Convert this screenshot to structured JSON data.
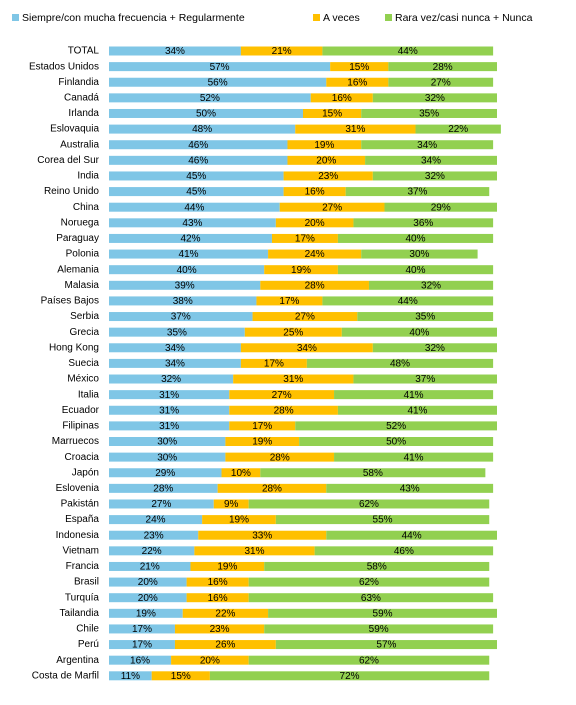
{
  "chart_data": {
    "type": "stacked-bar-horizontal",
    "categories": [
      "TOTAL",
      "Estados Unidos",
      "Finlandia",
      "Canadá",
      "Irlanda",
      "Eslovaquia",
      "Australia",
      "Corea del Sur",
      "India",
      "Reino Unido",
      "China",
      "Noruega",
      "Paraguay",
      "Polonia",
      "Alemania",
      "Malasia",
      "Países Bajos",
      "Serbia",
      "Grecia",
      "Hong Kong",
      "Suecia",
      "México",
      "Italia",
      "Ecuador",
      "Filipinas",
      "Marruecos",
      "Croacia",
      "Japón",
      "Eslovenia",
      "Pakistán",
      "España",
      "Indonesia",
      "Vietnam",
      "Francia",
      "Brasil",
      "Turquía",
      "Tailandia",
      "Chile",
      "Perú",
      "Argentina",
      "Costa de Marfil"
    ],
    "series": [
      {
        "name": "Siempre/con mucha frecuencia + Regularmente",
        "color": "#7fc6e6",
        "values": [
          34,
          57,
          56,
          52,
          50,
          48,
          46,
          46,
          45,
          45,
          44,
          43,
          42,
          41,
          40,
          39,
          38,
          37,
          35,
          34,
          34,
          32,
          31,
          31,
          31,
          30,
          30,
          29,
          28,
          27,
          24,
          23,
          22,
          21,
          20,
          20,
          19,
          17,
          17,
          16,
          11
        ],
        "value_labels": [
          "34%",
          "57%",
          "56%",
          "52%",
          "50%",
          "48%",
          "46%",
          "46%",
          "45%",
          "45%",
          "44%",
          "43%",
          "42%",
          "41%",
          "40%",
          "39%",
          "38%",
          "37%",
          "35%",
          "34%",
          "34%",
          "32%",
          "31%",
          "31%",
          "31%",
          "30%",
          "30%",
          "29%",
          "28%",
          "27%",
          "24%",
          "23%",
          "22%",
          "21%",
          "20%",
          "20%",
          "19%",
          "17%",
          "17%",
          "16%",
          "11%"
        ]
      },
      {
        "name": "A veces",
        "color": "#ffc000",
        "values": [
          21,
          15,
          16,
          16,
          15,
          31,
          19,
          20,
          23,
          16,
          27,
          20,
          17,
          24,
          19,
          28,
          17,
          27,
          25,
          34,
          17,
          31,
          27,
          28,
          17,
          19,
          28,
          10,
          28,
          9,
          19,
          33,
          31,
          19,
          16,
          16,
          22,
          23,
          26,
          20,
          15
        ],
        "value_labels": [
          "21%",
          "15%",
          "16%",
          "16%",
          "15%",
          "31%",
          "19%",
          "20%",
          "23%",
          "16%",
          "27%",
          "20%",
          "17%",
          "24%",
          "19%",
          "28%",
          "17%",
          "27%",
          "25%",
          "34%",
          "17%",
          "31%",
          "27%",
          "28%",
          "17%",
          "19%",
          "28%",
          "10%",
          "28%",
          "9%",
          "19%",
          "33%",
          "31%",
          "19%",
          "16%",
          "16%",
          "22%",
          "23%",
          "26%",
          "20%",
          "15%"
        ]
      },
      {
        "name": "Rara vez/casi nunca + Nunca",
        "color": "#92d050",
        "values": [
          44,
          28,
          27,
          32,
          35,
          22,
          34,
          34,
          32,
          37,
          29,
          36,
          40,
          30,
          40,
          32,
          44,
          35,
          40,
          32,
          48,
          37,
          41,
          41,
          52,
          50,
          41,
          58,
          43,
          62,
          55,
          44,
          46,
          58,
          62,
          63,
          59,
          59,
          57,
          62,
          72
        ],
        "value_labels": [
          "44%",
          "28%",
          "27%",
          "32%",
          "35%",
          "22%",
          "34%",
          "34%",
          "32%",
          "37%",
          "29%",
          "36%",
          "40%",
          "30%",
          "40%",
          "32%",
          "44%",
          "35%",
          "40%",
          "32%",
          "48%",
          "37%",
          "41%",
          "41%",
          "52%",
          "50%",
          "41%",
          "58%",
          "43%",
          "62%",
          "55%",
          "44%",
          "46%",
          "58%",
          "62%",
          "63%",
          "59%",
          "59%",
          "57%",
          "62%",
          "72%"
        ]
      }
    ],
    "xlim": [
      0,
      100
    ],
    "legend": "top"
  }
}
